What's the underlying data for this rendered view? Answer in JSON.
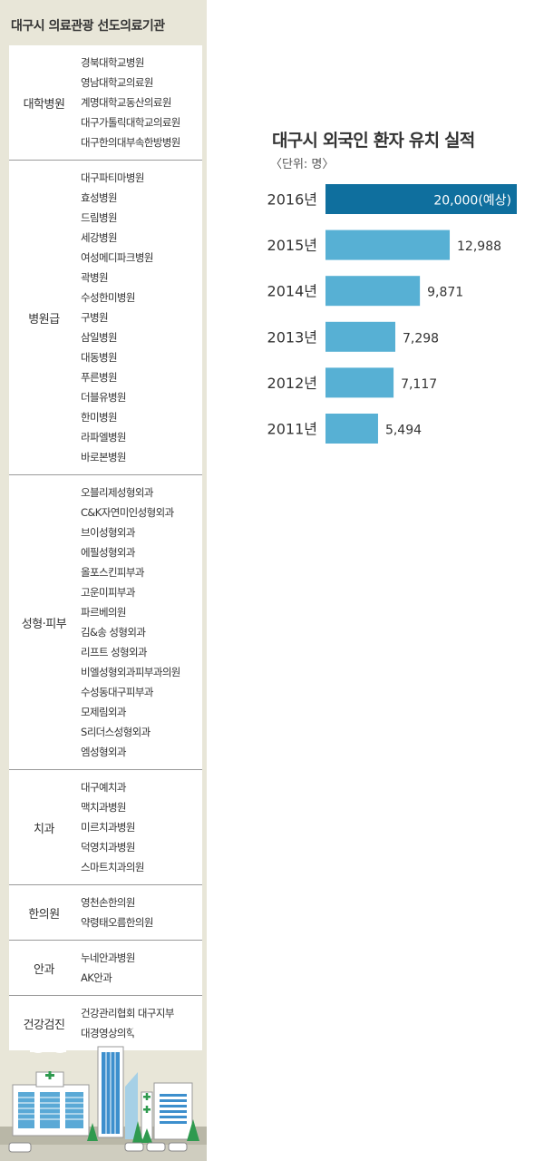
{
  "left": {
    "title": "대구시 의료관광 선도의료기관",
    "groups": [
      {
        "label": "대학병원",
        "items": [
          "경북대학교병원",
          "영남대학교의료원",
          "계명대학교동산의료원",
          "대구가톨릭대학교의료원",
          "대구한의대부속한방병원"
        ]
      },
      {
        "label": "병원급",
        "items": [
          "대구파티마병원",
          "효성병원",
          "드림병원",
          "세강병원",
          "여성메디파크병원",
          "곽병원",
          "수성한미병원",
          "구병원",
          "삼일병원",
          "대동병원",
          "푸른병원",
          "더블유병원",
          "한미병원",
          "라파엘병원",
          "바로본병원"
        ]
      },
      {
        "label": "성형·피부",
        "items": [
          "오블리제성형외과",
          "C&K자연미인성형외과",
          "브이성형외과",
          "에필성형외과",
          "올포스킨피부과",
          "고운미피부과",
          "파르베의원",
          "김&송 성형외과",
          "리프트 성형외과",
          "비엘성형외과피부과의원",
          "수성동대구피부과",
          "모제림외과",
          "S리더스성형외과",
          "엠성형외과"
        ]
      },
      {
        "label": "치과",
        "items": [
          "대구예치과",
          "맥치과병원",
          "미르치과병원",
          "덕영치과병원",
          "스마트치과의원"
        ]
      },
      {
        "label": "한의원",
        "items": [
          "영천손한의원",
          "약령태오름한의원"
        ]
      },
      {
        "label": "안과",
        "items": [
          "누네안과병원",
          "AK안과"
        ]
      },
      {
        "label": "건강검진",
        "items": [
          "건강관리협회 대구지부",
          "대경영상의학과의원"
        ]
      }
    ]
  },
  "colors": {
    "bar_highlight": "#0f6f9e",
    "bar": "#57b0d4",
    "left_bg": "#e8e6d8"
  },
  "chart_data": {
    "type": "bar",
    "orientation": "horizontal",
    "title": "대구시 외국인 환자 유치 실적",
    "unit": "〈단위: 명〉",
    "categories": [
      "2016년",
      "2015년",
      "2014년",
      "2013년",
      "2012년",
      "2011년"
    ],
    "values": [
      20000,
      12988,
      9871,
      7298,
      7117,
      5494
    ],
    "value_labels": [
      "20,000(예상)",
      "12,988",
      "9,871",
      "7,298",
      "7,117",
      "5,494"
    ],
    "highlight_index": 0,
    "grid": false
  }
}
